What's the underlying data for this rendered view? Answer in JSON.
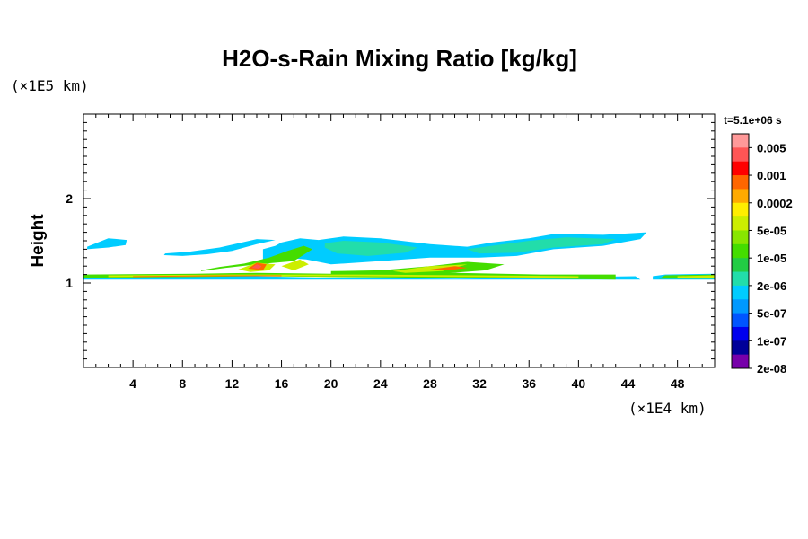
{
  "chart_data": {
    "type": "heatmap",
    "title": "H2O-s-Rain Mixing Ratio [kg/kg]",
    "ylabel": "Height",
    "x_unit": "(×1E4 km)",
    "y_unit": "(×1E5 km)",
    "time_label": "t=5.1e+06 s",
    "xlim": [
      0,
      51
    ],
    "ylim": [
      0,
      3
    ],
    "xticks": [
      4,
      8,
      12,
      16,
      20,
      24,
      28,
      32,
      36,
      40,
      44,
      48
    ],
    "yticks": [
      1,
      2
    ],
    "colorbar": {
      "labels": [
        "0.005",
        "0.001",
        "0.0002",
        "5e-05",
        "1e-05",
        "2e-06",
        "5e-07",
        "1e-07",
        "2e-08"
      ],
      "colors": [
        "#ff9999",
        "#ff5555",
        "#ff0000",
        "#ff6600",
        "#ffaa00",
        "#ffee00",
        "#ccee00",
        "#88e600",
        "#44dd00",
        "#22cc44",
        "#22ddaa",
        "#00ccff",
        "#0099ff",
        "#0055ff",
        "#0000ee",
        "#000099",
        "#7700aa"
      ]
    },
    "regions": [
      {
        "level": 5,
        "polygon": [
          [
            0,
            1.04
          ],
          [
            45,
            1.04
          ],
          [
            44.6,
            1.08
          ],
          [
            40,
            1.07
          ],
          [
            37,
            1.06
          ],
          [
            30,
            1.05
          ],
          [
            20,
            1.06
          ],
          [
            14,
            1.08
          ],
          [
            9,
            1.1
          ],
          [
            4,
            1.1
          ],
          [
            0,
            1.09
          ]
        ]
      },
      {
        "level": 5,
        "polygon": [
          [
            46,
            1.04
          ],
          [
            51,
            1.04
          ],
          [
            51,
            1.11
          ],
          [
            47,
            1.1
          ],
          [
            46,
            1.08
          ]
        ]
      },
      {
        "level": 5,
        "polygon": [
          [
            0.3,
            1.43
          ],
          [
            2,
            1.53
          ],
          [
            3.5,
            1.51
          ],
          [
            3.4,
            1.45
          ],
          [
            2,
            1.42
          ],
          [
            0.3,
            1.4
          ]
        ]
      },
      {
        "level": 5,
        "polygon": [
          [
            6.6,
            1.35
          ],
          [
            8.5,
            1.37
          ],
          [
            11,
            1.42
          ],
          [
            14,
            1.52
          ],
          [
            15.5,
            1.51
          ],
          [
            14,
            1.46
          ],
          [
            12,
            1.38
          ],
          [
            10,
            1.34
          ],
          [
            8,
            1.32
          ],
          [
            6.5,
            1.33
          ]
        ]
      },
      {
        "level": 5,
        "polygon": [
          [
            16,
            1.48
          ],
          [
            17.5,
            1.53
          ],
          [
            19,
            1.51
          ],
          [
            21,
            1.55
          ],
          [
            24,
            1.53
          ],
          [
            28,
            1.46
          ],
          [
            31,
            1.43
          ],
          [
            33,
            1.48
          ],
          [
            36,
            1.53
          ],
          [
            38,
            1.58
          ],
          [
            42,
            1.57
          ],
          [
            45.5,
            1.6
          ],
          [
            45,
            1.52
          ],
          [
            42,
            1.44
          ],
          [
            38,
            1.4
          ],
          [
            35,
            1.32
          ],
          [
            32,
            1.3
          ],
          [
            28,
            1.3
          ],
          [
            24,
            1.26
          ],
          [
            20,
            1.22
          ],
          [
            18,
            1.28
          ],
          [
            16,
            1.3
          ],
          [
            14.5,
            1.2
          ],
          [
            14.5,
            1.4
          ],
          [
            15.5,
            1.44
          ]
        ]
      },
      {
        "level": 6,
        "polygon": [
          [
            19.5,
            1.47
          ],
          [
            21,
            1.5
          ],
          [
            24,
            1.48
          ],
          [
            27,
            1.42
          ],
          [
            26,
            1.36
          ],
          [
            23,
            1.32
          ],
          [
            20.5,
            1.35
          ],
          [
            19.5,
            1.42
          ]
        ]
      },
      {
        "level": 6,
        "polygon": [
          [
            31,
            1.4
          ],
          [
            33,
            1.44
          ],
          [
            36,
            1.5
          ],
          [
            39,
            1.54
          ],
          [
            43,
            1.52
          ],
          [
            42,
            1.46
          ],
          [
            38,
            1.42
          ],
          [
            35,
            1.36
          ],
          [
            32,
            1.35
          ]
        ]
      },
      {
        "level": 8,
        "polygon": [
          [
            9.5,
            1.14
          ],
          [
            11.5,
            1.18
          ],
          [
            14,
            1.22
          ],
          [
            17,
            1.26
          ],
          [
            18.5,
            1.4
          ],
          [
            17.8,
            1.44
          ],
          [
            16.5,
            1.38
          ],
          [
            15,
            1.3
          ],
          [
            13,
            1.23
          ],
          [
            11,
            1.19
          ],
          [
            9.5,
            1.15
          ]
        ]
      },
      {
        "level": 8,
        "polygon": [
          [
            20,
            1.14
          ],
          [
            24,
            1.15
          ],
          [
            28,
            1.2
          ],
          [
            31,
            1.25
          ],
          [
            34,
            1.22
          ],
          [
            32.5,
            1.15
          ],
          [
            28,
            1.1
          ],
          [
            24,
            1.08
          ],
          [
            20,
            1.09
          ]
        ]
      },
      {
        "level": 8,
        "polygon": [
          [
            0,
            1.06
          ],
          [
            9,
            1.07
          ],
          [
            14,
            1.08
          ],
          [
            20,
            1.07
          ],
          [
            30,
            1.06
          ],
          [
            37,
            1.05
          ],
          [
            43,
            1.04
          ],
          [
            43,
            1.1
          ],
          [
            37,
            1.1
          ],
          [
            30,
            1.12
          ],
          [
            20,
            1.11
          ],
          [
            14,
            1.12
          ],
          [
            9,
            1.11
          ],
          [
            0,
            1.1
          ]
        ]
      },
      {
        "level": 8,
        "polygon": [
          [
            46.5,
            1.05
          ],
          [
            51,
            1.05
          ],
          [
            51,
            1.1
          ],
          [
            47,
            1.09
          ]
        ]
      },
      {
        "level": 10,
        "polygon": [
          [
            12.5,
            1.16
          ],
          [
            14,
            1.24
          ],
          [
            15.5,
            1.22
          ],
          [
            15,
            1.15
          ],
          [
            13.5,
            1.13
          ]
        ]
      },
      {
        "level": 10,
        "polygon": [
          [
            16,
            1.2
          ],
          [
            17.5,
            1.28
          ],
          [
            18.2,
            1.22
          ],
          [
            17,
            1.15
          ]
        ]
      },
      {
        "level": 10,
        "polygon": [
          [
            25,
            1.14
          ],
          [
            28,
            1.2
          ],
          [
            31,
            1.22
          ],
          [
            29,
            1.14
          ],
          [
            26,
            1.12
          ]
        ]
      },
      {
        "level": 10,
        "polygon": [
          [
            2,
            1.07
          ],
          [
            12,
            1.08
          ],
          [
            22,
            1.08
          ],
          [
            32,
            1.07
          ],
          [
            40,
            1.06
          ],
          [
            40,
            1.08
          ],
          [
            32,
            1.09
          ],
          [
            22,
            1.1
          ],
          [
            12,
            1.1
          ],
          [
            2,
            1.09
          ]
        ]
      },
      {
        "level": 10,
        "polygon": [
          [
            48,
            1.06
          ],
          [
            51,
            1.06
          ],
          [
            51,
            1.09
          ],
          [
            48,
            1.08
          ]
        ]
      },
      {
        "level": 13,
        "polygon": [
          [
            13.3,
            1.17
          ],
          [
            14,
            1.24
          ],
          [
            14.8,
            1.22
          ],
          [
            14.5,
            1.15
          ]
        ]
      },
      {
        "level": 13,
        "polygon": [
          [
            28,
            1.16
          ],
          [
            30,
            1.2
          ],
          [
            31,
            1.18
          ],
          [
            29.5,
            1.15
          ]
        ]
      },
      {
        "level": 13,
        "polygon": [
          [
            4,
            1.07
          ],
          [
            10,
            1.08
          ],
          [
            16,
            1.08
          ],
          [
            16,
            1.09
          ],
          [
            10,
            1.09
          ],
          [
            4,
            1.08
          ]
        ]
      },
      {
        "level": 15,
        "polygon": [
          [
            13.6,
            1.18
          ],
          [
            14,
            1.22
          ],
          [
            14.4,
            1.2
          ],
          [
            14.2,
            1.17
          ]
        ]
      }
    ]
  }
}
